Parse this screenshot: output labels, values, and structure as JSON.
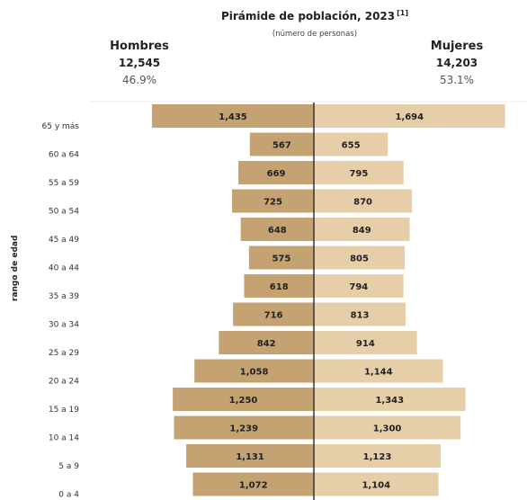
{
  "chart_data": {
    "type": "bar",
    "title": "Pirámide de población, 2023",
    "title_note": "[1]",
    "subtitle": "(número de personas)",
    "ylabel": "rango de edad",
    "categories": [
      "65 y más",
      "60 a 64",
      "55 a 59",
      "50 a 54",
      "45 a 49",
      "40 a 44",
      "35 a 39",
      "30 a 34",
      "25 a 29",
      "20 a 24",
      "15 a 19",
      "10 a 14",
      "5 a 9",
      "0 a 4"
    ],
    "series": [
      {
        "name": "Hombres",
        "total": "12,545",
        "share": "46.9%",
        "color": "#c4a272",
        "values": [
          1435,
          567,
          669,
          725,
          648,
          575,
          618,
          716,
          842,
          1058,
          1250,
          1239,
          1131,
          1072
        ],
        "labels": [
          "1,435",
          "567",
          "669",
          "725",
          "648",
          "575",
          "618",
          "716",
          "842",
          "1,058",
          "1,250",
          "1,239",
          "1,131",
          "1,072"
        ]
      },
      {
        "name": "Mujeres",
        "total": "14,203",
        "share": "53.1%",
        "color": "#e6cfa8",
        "values": [
          1694,
          655,
          795,
          870,
          849,
          805,
          794,
          813,
          914,
          1144,
          1343,
          1300,
          1123,
          1104
        ],
        "labels": [
          "1,694",
          "655",
          "795",
          "870",
          "849",
          "805",
          "794",
          "813",
          "914",
          "1,144",
          "1,343",
          "1,300",
          "1,123",
          "1,104"
        ]
      }
    ],
    "xlim": [
      0,
      1694
    ],
    "grid": false
  }
}
